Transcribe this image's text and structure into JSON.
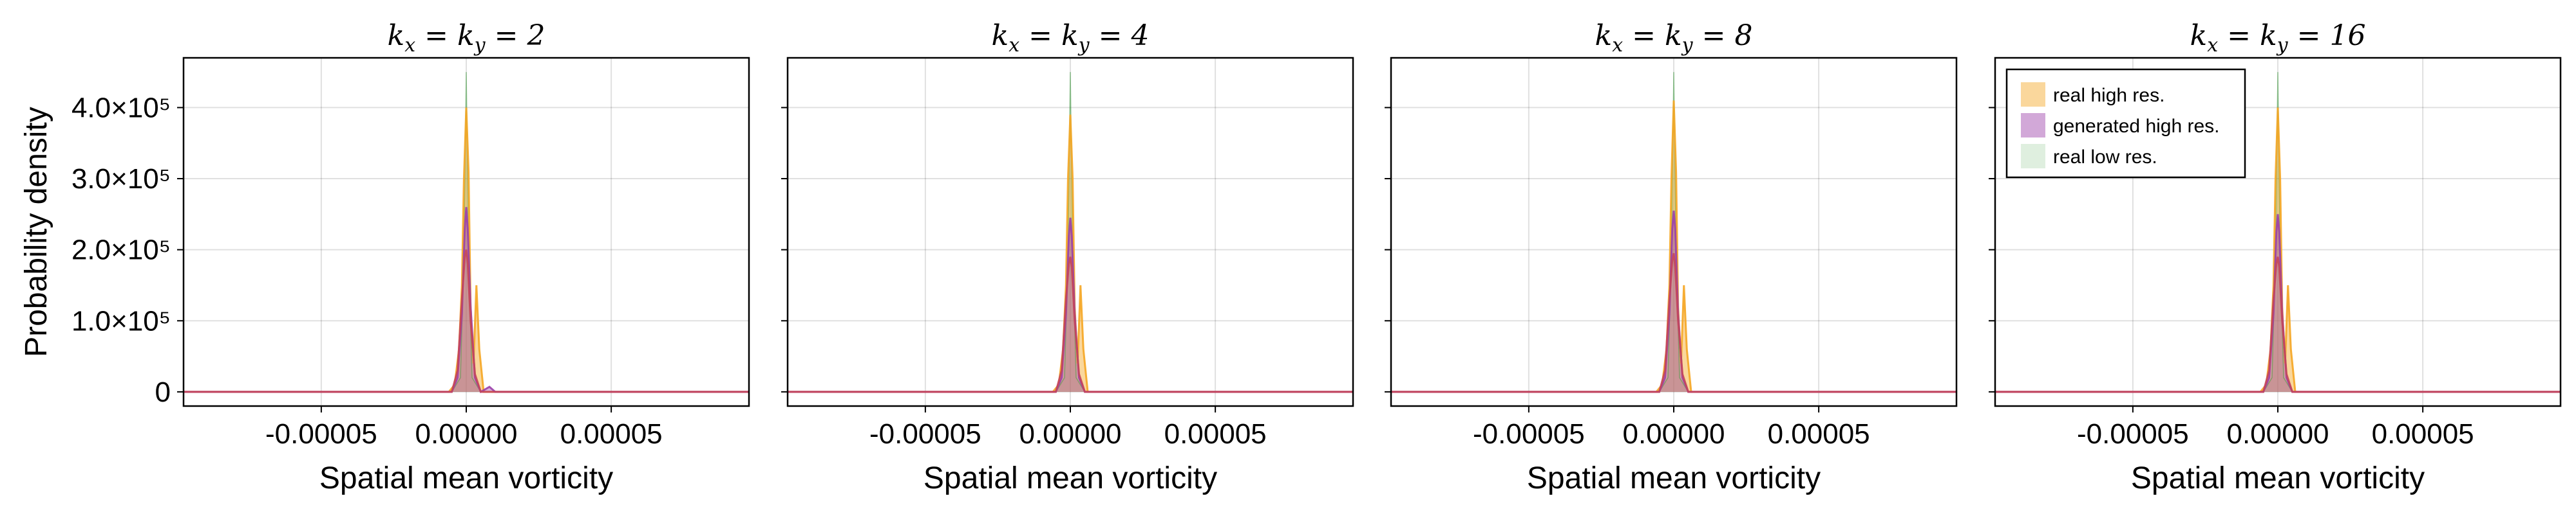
{
  "chart_data": [
    {
      "type": "area",
      "title": "k_x = k_y = 2",
      "title_parts": {
        "k1": "k",
        "s1": "x",
        "eq1": " = ",
        "k2": "k",
        "s2": "y",
        "eq2": " = ",
        "n": "2"
      },
      "xlabel": "Spatial mean vorticity",
      "ylabel": "Probability density",
      "xlim": [
        -9.75e-05,
        9.75e-05
      ],
      "ylim": [
        -20000,
        470000
      ],
      "xticks": [
        -5e-05,
        0.0,
        5e-05
      ],
      "xtick_labels": [
        "-0.00005",
        "0.00000",
        "0.00005"
      ],
      "yticks": [
        0,
        100000,
        200000,
        300000,
        400000
      ],
      "ytick_labels": [
        "0",
        "1.0×10⁵",
        "2.0×10⁵",
        "3.0×10⁵",
        "4.0×10⁵"
      ],
      "grid": true,
      "series": [
        {
          "name": "real low res.",
          "color": "#3a9a3a",
          "x": [
            -9.75e-05,
            -5e-06,
            -2e-06,
            -8e-07,
            0.0,
            8e-07,
            2e-06,
            5e-06,
            9.75e-05
          ],
          "values": [
            0,
            0,
            20000,
            200000,
            450000,
            200000,
            20000,
            0,
            0
          ]
        },
        {
          "name": "real high res.",
          "color": "#f5a623",
          "x": [
            -9.75e-05,
            -6e-06,
            -4e-06,
            -2.5e-06,
            -1.5e-06,
            -8e-07,
            0.0,
            8e-07,
            1.5e-06,
            2.5e-06,
            3.5e-06,
            4.5e-06,
            6e-06,
            9.75e-05
          ],
          "values": [
            0,
            0,
            10000,
            60000,
            150000,
            300000,
            400000,
            310000,
            120000,
            40000,
            150000,
            60000,
            0,
            0
          ]
        },
        {
          "name": "generated high res.",
          "color": "#9b3fa8",
          "x": [
            -9.75e-05,
            -5e-06,
            -3e-06,
            -1.5e-06,
            -5e-07,
            0.0,
            5e-07,
            1.5e-06,
            3e-06,
            5e-06,
            8e-06,
            1e-05,
            9.75e-05
          ],
          "values": [
            0,
            0,
            20000,
            110000,
            230000,
            260000,
            230000,
            120000,
            20000,
            0,
            7000,
            0,
            0
          ]
        },
        {
          "name": "",
          "color": "#c4455a",
          "x": [
            -9.75e-05,
            -5e-06,
            -3e-06,
            -1.5e-06,
            -5e-07,
            0.0,
            5e-07,
            1.5e-06,
            3e-06,
            5e-06,
            9.75e-05
          ],
          "values": [
            0,
            0,
            30000,
            130000,
            190000,
            200000,
            180000,
            100000,
            25000,
            0,
            0
          ]
        }
      ]
    },
    {
      "type": "area",
      "title": "k_x = k_y = 4",
      "title_parts": {
        "k1": "k",
        "s1": "x",
        "eq1": " = ",
        "k2": "k",
        "s2": "y",
        "eq2": " = ",
        "n": "4"
      },
      "xlabel": "Spatial mean vorticity",
      "xlim": [
        -9.75e-05,
        9.75e-05
      ],
      "ylim": [
        -20000,
        470000
      ],
      "xticks": [
        -5e-05,
        0.0,
        5e-05
      ],
      "xtick_labels": [
        "-0.00005",
        "0.00000",
        "0.00005"
      ],
      "yticks": [
        0,
        100000,
        200000,
        300000,
        400000
      ],
      "grid": true,
      "series": [
        {
          "name": "real low res.",
          "color": "#3a9a3a",
          "x": [
            -9.75e-05,
            -5e-06,
            -2e-06,
            -8e-07,
            0.0,
            8e-07,
            2e-06,
            5e-06,
            9.75e-05
          ],
          "values": [
            0,
            0,
            20000,
            200000,
            450000,
            200000,
            20000,
            0,
            0
          ]
        },
        {
          "name": "real high res.",
          "color": "#f5a623",
          "x": [
            -9.75e-05,
            -6e-06,
            -4e-06,
            -2.5e-06,
            -1.5e-06,
            -8e-07,
            0.0,
            8e-07,
            1.5e-06,
            2.5e-06,
            3.5e-06,
            4.5e-06,
            6e-06,
            9.75e-05
          ],
          "values": [
            0,
            0,
            10000,
            60000,
            150000,
            300000,
            390000,
            300000,
            120000,
            40000,
            150000,
            60000,
            0,
            0
          ]
        },
        {
          "name": "generated high res.",
          "color": "#9b3fa8",
          "x": [
            -9.75e-05,
            -5e-06,
            -3e-06,
            -1.5e-06,
            -5e-07,
            0.0,
            5e-07,
            1.5e-06,
            3e-06,
            5e-06,
            9.75e-05
          ],
          "values": [
            0,
            0,
            20000,
            110000,
            220000,
            245000,
            220000,
            110000,
            20000,
            0,
            0
          ]
        },
        {
          "name": "",
          "color": "#c4455a",
          "x": [
            -9.75e-05,
            -5e-06,
            -3e-06,
            -1.5e-06,
            -5e-07,
            0.0,
            5e-07,
            1.5e-06,
            3e-06,
            5e-06,
            9.75e-05
          ],
          "values": [
            0,
            0,
            30000,
            130000,
            180000,
            190000,
            175000,
            100000,
            25000,
            0,
            0
          ]
        }
      ]
    },
    {
      "type": "area",
      "title": "k_x = k_y = 8",
      "title_parts": {
        "k1": "k",
        "s1": "x",
        "eq1": " = ",
        "k2": "k",
        "s2": "y",
        "eq2": " = ",
        "n": "8"
      },
      "xlabel": "Spatial mean vorticity",
      "xlim": [
        -9.75e-05,
        9.75e-05
      ],
      "ylim": [
        -20000,
        470000
      ],
      "xticks": [
        -5e-05,
        0.0,
        5e-05
      ],
      "xtick_labels": [
        "-0.00005",
        "0.00000",
        "0.00005"
      ],
      "yticks": [
        0,
        100000,
        200000,
        300000,
        400000
      ],
      "grid": true,
      "series": [
        {
          "name": "real low res.",
          "color": "#3a9a3a",
          "x": [
            -9.75e-05,
            -5e-06,
            -2e-06,
            -8e-07,
            0.0,
            8e-07,
            2e-06,
            5e-06,
            9.75e-05
          ],
          "values": [
            0,
            0,
            20000,
            200000,
            450000,
            200000,
            20000,
            0,
            0
          ]
        },
        {
          "name": "real high res.",
          "color": "#f5a623",
          "x": [
            -9.75e-05,
            -6e-06,
            -4e-06,
            -2.5e-06,
            -1.5e-06,
            -8e-07,
            0.0,
            8e-07,
            1.5e-06,
            2.5e-06,
            3.5e-06,
            4.5e-06,
            6e-06,
            9.75e-05
          ],
          "values": [
            0,
            0,
            10000,
            60000,
            150000,
            300000,
            410000,
            310000,
            120000,
            40000,
            150000,
            60000,
            0,
            0
          ]
        },
        {
          "name": "generated high res.",
          "color": "#9b3fa8",
          "x": [
            -9.75e-05,
            -5e-06,
            -3e-06,
            -1.5e-06,
            -5e-07,
            0.0,
            5e-07,
            1.5e-06,
            3e-06,
            5e-06,
            9.75e-05
          ],
          "values": [
            0,
            0,
            20000,
            110000,
            230000,
            255000,
            230000,
            110000,
            20000,
            0,
            0
          ]
        },
        {
          "name": "",
          "color": "#c4455a",
          "x": [
            -9.75e-05,
            -5e-06,
            -3e-06,
            -1.5e-06,
            -5e-07,
            0.0,
            5e-07,
            1.5e-06,
            3e-06,
            5e-06,
            9.75e-05
          ],
          "values": [
            0,
            0,
            30000,
            130000,
            185000,
            195000,
            175000,
            100000,
            25000,
            0,
            0
          ]
        }
      ]
    },
    {
      "type": "area",
      "title": "k_x = k_y = 16",
      "title_parts": {
        "k1": "k",
        "s1": "x",
        "eq1": " = ",
        "k2": "k",
        "s2": "y",
        "eq2": " = ",
        "n": "16"
      },
      "xlabel": "Spatial mean vorticity",
      "xlim": [
        -9.75e-05,
        9.75e-05
      ],
      "ylim": [
        -20000,
        470000
      ],
      "xticks": [
        -5e-05,
        0.0,
        5e-05
      ],
      "xtick_labels": [
        "-0.00005",
        "0.00000",
        "0.00005"
      ],
      "yticks": [
        0,
        100000,
        200000,
        300000,
        400000
      ],
      "grid": true,
      "legend_position": "top-left",
      "legend": [
        {
          "label": "real high res.",
          "color": "#f5a623"
        },
        {
          "label": "generated high res.",
          "color": "#9b3fa8"
        },
        {
          "label": "real low res.",
          "color": "#3a9a3a"
        }
      ],
      "series": [
        {
          "name": "real low res.",
          "color": "#3a9a3a",
          "x": [
            -9.75e-05,
            -5e-06,
            -2e-06,
            -8e-07,
            0.0,
            8e-07,
            2e-06,
            5e-06,
            9.75e-05
          ],
          "values": [
            0,
            0,
            20000,
            200000,
            450000,
            200000,
            20000,
            0,
            0
          ]
        },
        {
          "name": "real high res.",
          "color": "#f5a623",
          "x": [
            -9.75e-05,
            -6e-06,
            -4e-06,
            -2.5e-06,
            -1.5e-06,
            -8e-07,
            0.0,
            8e-07,
            1.5e-06,
            2.5e-06,
            3.5e-06,
            4.5e-06,
            6e-06,
            9.75e-05
          ],
          "values": [
            0,
            0,
            10000,
            60000,
            150000,
            300000,
            400000,
            300000,
            120000,
            40000,
            150000,
            60000,
            0,
            0
          ]
        },
        {
          "name": "generated high res.",
          "color": "#9b3fa8",
          "x": [
            -9.75e-05,
            -5e-06,
            -3e-06,
            -1.5e-06,
            -5e-07,
            0.0,
            5e-07,
            1.5e-06,
            3e-06,
            5e-06,
            9.75e-05
          ],
          "values": [
            0,
            0,
            20000,
            110000,
            225000,
            250000,
            225000,
            110000,
            20000,
            0,
            0
          ]
        },
        {
          "name": "",
          "color": "#c4455a",
          "x": [
            -9.75e-05,
            -5e-06,
            -3e-06,
            -1.5e-06,
            -5e-07,
            0.0,
            5e-07,
            1.5e-06,
            3e-06,
            5e-06,
            9.75e-05
          ],
          "values": [
            0,
            0,
            30000,
            130000,
            180000,
            190000,
            175000,
            100000,
            25000,
            0,
            0
          ]
        }
      ]
    }
  ]
}
